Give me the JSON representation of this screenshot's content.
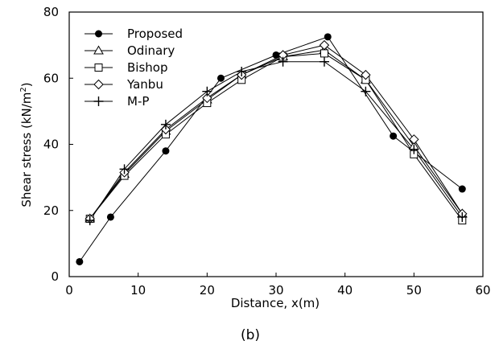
{
  "chart_data": {
    "type": "line",
    "caption": "(b)",
    "xlabel": "Distance, x(m)",
    "ylabel_main": "Shear stress (kN/m",
    "ylabel_sup": "2",
    "ylabel_end": ")",
    "xlim": [
      0,
      60
    ],
    "ylim": [
      0,
      80
    ],
    "x_ticks": [
      "0",
      "10",
      "20",
      "30",
      "40",
      "50",
      "60"
    ],
    "y_ticks": [
      "0",
      "20",
      "40",
      "60",
      "80"
    ],
    "grid": false,
    "legend_position": "top-left",
    "series": [
      {
        "name": "Proposed",
        "marker": "filled-circle",
        "x": [
          1.5,
          6,
          14,
          22,
          30,
          37.5,
          47,
          57
        ],
        "y": [
          4.5,
          18,
          38,
          60,
          67,
          72.5,
          42.5,
          26.5
        ]
      },
      {
        "name": "Odinary",
        "marker": "open-triangle",
        "x": [
          3,
          8,
          14,
          20,
          25,
          31,
          37,
          43,
          50,
          57
        ],
        "y": [
          17.5,
          31,
          44,
          53.5,
          61,
          66.5,
          68.5,
          59.5,
          39.5,
          19
        ]
      },
      {
        "name": "Bishop",
        "marker": "open-square",
        "x": [
          3,
          8,
          14,
          20,
          25,
          31,
          37,
          43,
          50,
          57
        ],
        "y": [
          17.5,
          30.5,
          43,
          52.5,
          59.5,
          66.5,
          67.5,
          59.5,
          37,
          17
        ]
      },
      {
        "name": "Yanbu",
        "marker": "open-diamond",
        "x": [
          3,
          8,
          14,
          20,
          25,
          31,
          37,
          43,
          50,
          57
        ],
        "y": [
          17.5,
          31.5,
          44.5,
          54,
          61,
          67,
          70,
          61,
          41.5,
          19
        ]
      },
      {
        "name": "M-P",
        "marker": "plus",
        "x": [
          3,
          8,
          14,
          20,
          25,
          31,
          37,
          43,
          50,
          57
        ],
        "y": [
          17,
          32.5,
          46,
          56,
          62,
          65,
          65,
          56,
          38.5,
          18
        ]
      }
    ]
  }
}
